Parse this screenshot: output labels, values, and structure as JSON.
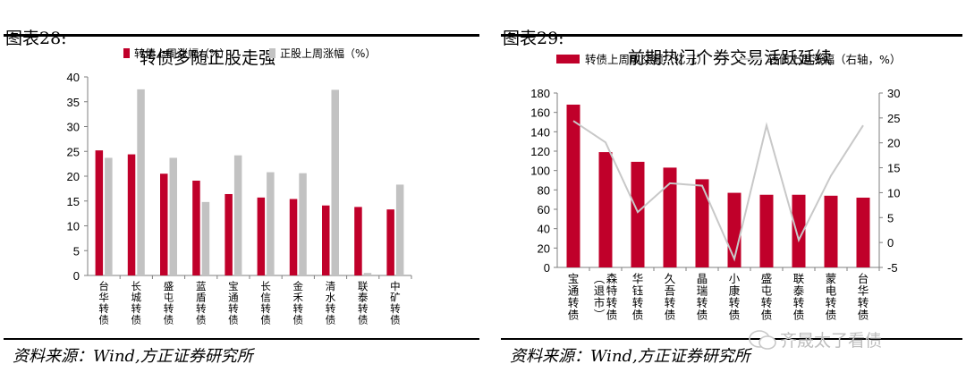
{
  "left": {
    "label": "图表28:",
    "title": "转债多随正股走强",
    "source": "资料来源：Wind,方正证券研究所",
    "chart_data": {
      "type": "bar",
      "categories": [
        "台华转债",
        "长城转债",
        "盛屯转债",
        "蓝盾转债",
        "宝通转债",
        "长信转债",
        "金禾转债",
        "清水转债",
        "联泰转债",
        "中矿转债"
      ],
      "series": [
        {
          "name": "转债上周涨幅（%）",
          "values": [
            25.2,
            24.4,
            20.5,
            19.1,
            16.4,
            15.7,
            15.4,
            14.1,
            13.8,
            13.3
          ],
          "color": "#c0002a"
        },
        {
          "name": "正股上周涨幅（%）",
          "values": [
            23.7,
            37.5,
            23.7,
            14.8,
            24.2,
            20.8,
            20.6,
            37.4,
            0.5,
            18.3
          ],
          "color": "#c2c2c2"
        }
      ],
      "ylim": [
        0,
        40
      ],
      "yticks": [
        "0",
        "5",
        "10",
        "15",
        "20",
        "25",
        "30",
        "35",
        "40"
      ],
      "legend_position": "top"
    }
  },
  "right": {
    "label": "图表29:",
    "title": "前期热门个券交易活跃延续",
    "source": "资料来源：Wind,方正证券研究所",
    "watermark": "齐晟太了看债",
    "chart_data": {
      "type": "bar",
      "categories": [
        "宝通转债",
        "（退市）森特转债",
        "华钰转债",
        "久吾转债",
        "晶瑞转债",
        "小康转债",
        "盛屯转债",
        "联泰转债",
        "蒙电转债",
        "台华转债"
      ],
      "category_lines": [
        [
          "宝",
          "通",
          "转",
          "债"
        ],
        [
          "（退市）",
          "森特转债"
        ],
        [
          "华",
          "钰",
          "转",
          "债"
        ],
        [
          "久",
          "吾",
          "转",
          "债"
        ],
        [
          "晶",
          "瑞",
          "转",
          "债"
        ],
        [
          "小",
          "康",
          "转",
          "债"
        ],
        [
          "盛",
          "屯",
          "转",
          "债"
        ],
        [
          "联",
          "泰",
          "转",
          "债"
        ],
        [
          "蒙",
          "电",
          "转",
          "债"
        ],
        [
          "台",
          "华",
          "转",
          "债"
        ]
      ],
      "series": [
        {
          "name": "转债上周成交额（亿元）",
          "type": "bar",
          "axis": "left",
          "values": [
            168,
            119,
            109,
            103,
            91,
            77,
            75,
            75,
            74,
            72
          ],
          "color": "#c0002a"
        },
        {
          "name": "转债上周涨幅（右轴，%）",
          "type": "line",
          "axis": "right",
          "values": [
            24.4,
            20.1,
            6.1,
            11.9,
            11.4,
            -3.3,
            23.5,
            0.5,
            13.4,
            23.5
          ],
          "color": "#c8c8c8"
        }
      ],
      "ylim_left": [
        0,
        180
      ],
      "ylim_right": [
        -5,
        30
      ],
      "yticks_left": [
        "0",
        "20",
        "40",
        "60",
        "80",
        "100",
        "120",
        "140",
        "160",
        "180"
      ],
      "yticks_right": [
        "-5",
        "0",
        "5",
        "10",
        "15",
        "20",
        "25",
        "30"
      ],
      "legend_position": "top"
    }
  }
}
